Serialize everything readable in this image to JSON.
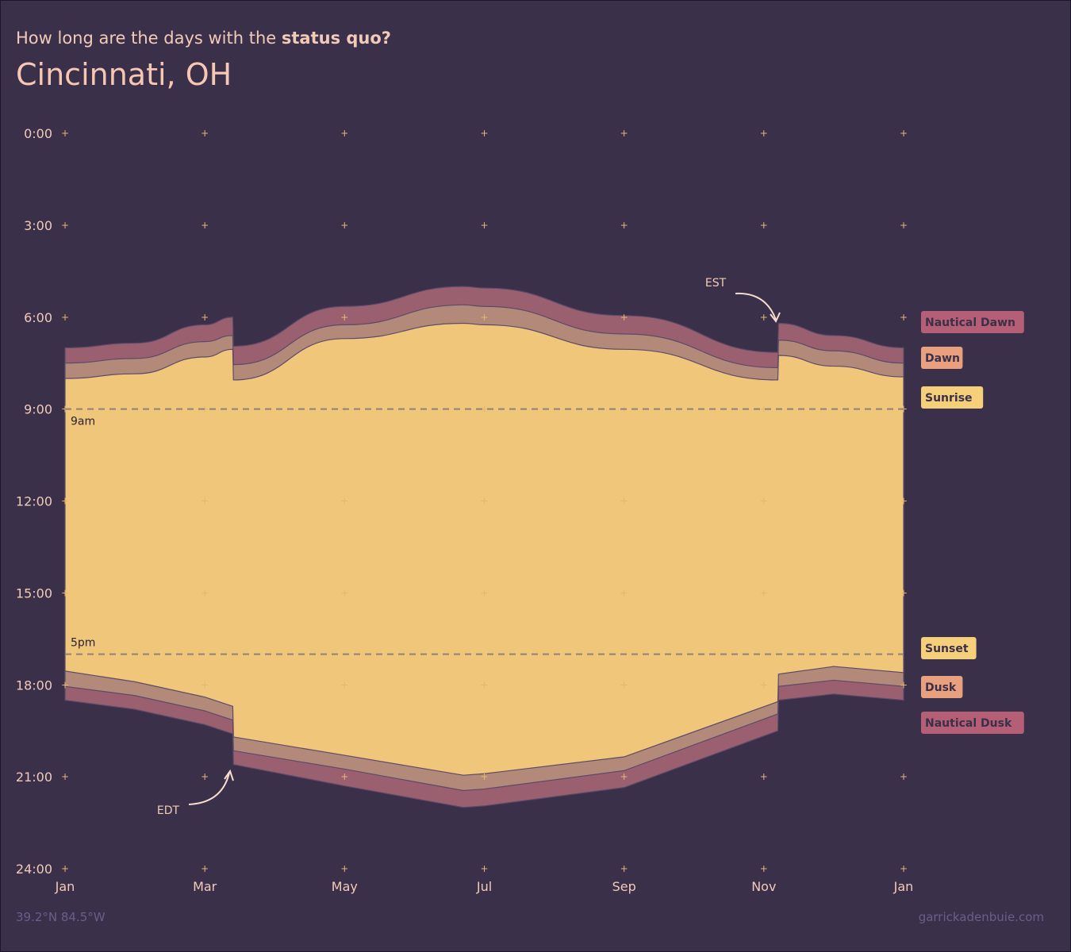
{
  "header": {
    "subtitle_prefix": "How long are the days with the ",
    "subtitle_emph": "status quo?",
    "title": "Cincinnati, OH"
  },
  "footer": {
    "coords": "39.2°N 84.5°W",
    "credit": "garrickadenbuie.com"
  },
  "colors": {
    "background": "#3a3049",
    "nautical": "#9a6070",
    "civil": "#b38a7a",
    "daylight": "#efc67a",
    "label_nautical": "#b45f75",
    "label_civil": "#e8a07e",
    "label_sun": "#f6cf7a",
    "tick": "#e5b870",
    "text": "#f2cbb8"
  },
  "chart_data": {
    "type": "area",
    "title": "Cincinnati, OH",
    "subtitle": "How long are the days with the status quo?",
    "y_ticks": [
      "0:00",
      "3:00",
      "6:00",
      "9:00",
      "12:00",
      "15:00",
      "18:00",
      "21:00",
      "24:00"
    ],
    "x_ticks": [
      "Jan",
      "Mar",
      "May",
      "Jul",
      "Sep",
      "Nov",
      "Jan"
    ],
    "x_tick_months": [
      0,
      2,
      4,
      6,
      8,
      10,
      12
    ],
    "ylim": [
      0,
      24
    ],
    "grid": "plus markers",
    "reference_lines": [
      {
        "label": "9am",
        "hour": 9
      },
      {
        "label": "5pm",
        "hour": 17
      }
    ],
    "annotations": [
      {
        "label": "EST",
        "month": 10.2
      },
      {
        "label": "EDT",
        "month": 2.4
      }
    ],
    "legend": [
      "Nautical Dawn",
      "Dawn",
      "Sunrise",
      "Sunset",
      "Dusk",
      "Nautical Dusk"
    ],
    "x_month": [
      0,
      1,
      2,
      2.4,
      2.41,
      4,
      5.7,
      6,
      8,
      10.2,
      10.21,
      11,
      12
    ],
    "series": [
      {
        "name": "Nautical Dawn",
        "values": [
          7.0,
          6.85,
          6.25,
          6.0,
          6.95,
          5.65,
          5.0,
          5.05,
          5.95,
          7.15,
          6.2,
          6.6,
          7.0
        ]
      },
      {
        "name": "Dawn",
        "values": [
          7.5,
          7.35,
          6.8,
          6.6,
          7.55,
          6.25,
          5.6,
          5.65,
          6.55,
          7.65,
          6.75,
          7.1,
          7.5
        ]
      },
      {
        "name": "Sunrise",
        "values": [
          8.0,
          7.85,
          7.3,
          7.05,
          8.05,
          6.7,
          6.2,
          6.25,
          7.05,
          8.05,
          7.25,
          7.6,
          7.95
        ]
      },
      {
        "name": "Sunset",
        "values": [
          17.55,
          17.9,
          18.4,
          18.7,
          19.7,
          20.3,
          20.95,
          20.9,
          20.35,
          18.55,
          17.65,
          17.4,
          17.6
        ]
      },
      {
        "name": "Dusk",
        "values": [
          18.05,
          18.35,
          18.85,
          19.15,
          20.15,
          20.75,
          21.45,
          21.4,
          20.8,
          18.95,
          18.05,
          17.85,
          18.05
        ]
      },
      {
        "name": "Nautical Dusk",
        "values": [
          18.5,
          18.8,
          19.3,
          19.6,
          20.6,
          21.3,
          22.0,
          21.95,
          21.35,
          19.5,
          18.5,
          18.3,
          18.5
        ]
      }
    ]
  }
}
